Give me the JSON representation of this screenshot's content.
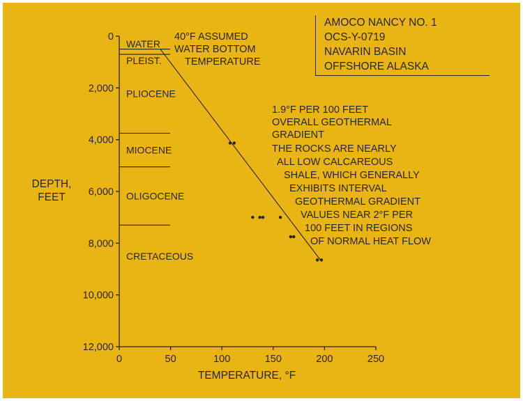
{
  "title_block": {
    "lines": [
      "AMOCO NANCY NO. 1",
      "OCS-Y-0719",
      "NAVARIN BASIN",
      "OFFSHORE ALASKA"
    ]
  },
  "annotation_top": {
    "lines": [
      "40°F ASSUMED",
      "WATER BOTTOM",
      "TEMPERATURE"
    ]
  },
  "annotation_gradient": {
    "lines": [
      "1.9°F PER 100 FEET",
      "OVERALL GEOTHERMAL",
      "GRADIENT",
      "THE ROCKS ARE NEARLY",
      "ALL LOW CALCAREOUS",
      "SHALE, WHICH GENERALLY",
      "EXHIBITS INTERVAL",
      "GEOTHERMAL GRADIENT",
      "VALUES NEAR 2°F PER",
      "100 FEET IN REGIONS",
      "OF NORMAL HEAT FLOW"
    ]
  },
  "chart_data": {
    "type": "scatter",
    "xlabel": "TEMPERATURE, °F",
    "ylabel_lines": [
      "DEPTH,",
      "FEET"
    ],
    "xlim": [
      0,
      250
    ],
    "ylim": [
      0,
      12000
    ],
    "y_inverted": true,
    "x_ticks": [
      "0",
      "50",
      "100",
      "150",
      "200",
      "250"
    ],
    "y_ticks": [
      "0",
      "2,000",
      "4,000",
      "6,000",
      "8,000",
      "10,000",
      "12,000"
    ],
    "x_tick_values": [
      0,
      50,
      100,
      150,
      200,
      250
    ],
    "y_tick_values": [
      0,
      2000,
      4000,
      6000,
      8000,
      10000,
      12000
    ],
    "strata": [
      {
        "name": "WATER",
        "bottom_depth": 500
      },
      {
        "name": "PLEIST.",
        "bottom_depth": 700
      },
      {
        "name": "PLIOCENE",
        "bottom_depth": 3750
      },
      {
        "name": "MIOCENE",
        "bottom_depth": 5050
      },
      {
        "name": "OLIGOCENE",
        "bottom_depth": 7300
      },
      {
        "name": "CRETACEOUS",
        "bottom_depth": null
      }
    ],
    "points": [
      {
        "x": 108,
        "y": 4130
      },
      {
        "x": 112,
        "y": 4130
      },
      {
        "x": 130,
        "y": 7000
      },
      {
        "x": 137,
        "y": 7000
      },
      {
        "x": 140,
        "y": 7000
      },
      {
        "x": 157,
        "y": 7000
      },
      {
        "x": 167,
        "y": 7750
      },
      {
        "x": 170,
        "y": 7750
      },
      {
        "x": 193,
        "y": 8650
      },
      {
        "x": 197,
        "y": 8650
      }
    ],
    "gradient_line": {
      "from": {
        "x": 40,
        "y": 500
      },
      "to": {
        "x": 196,
        "y": 8650
      }
    },
    "grid": false,
    "legend": "none"
  }
}
